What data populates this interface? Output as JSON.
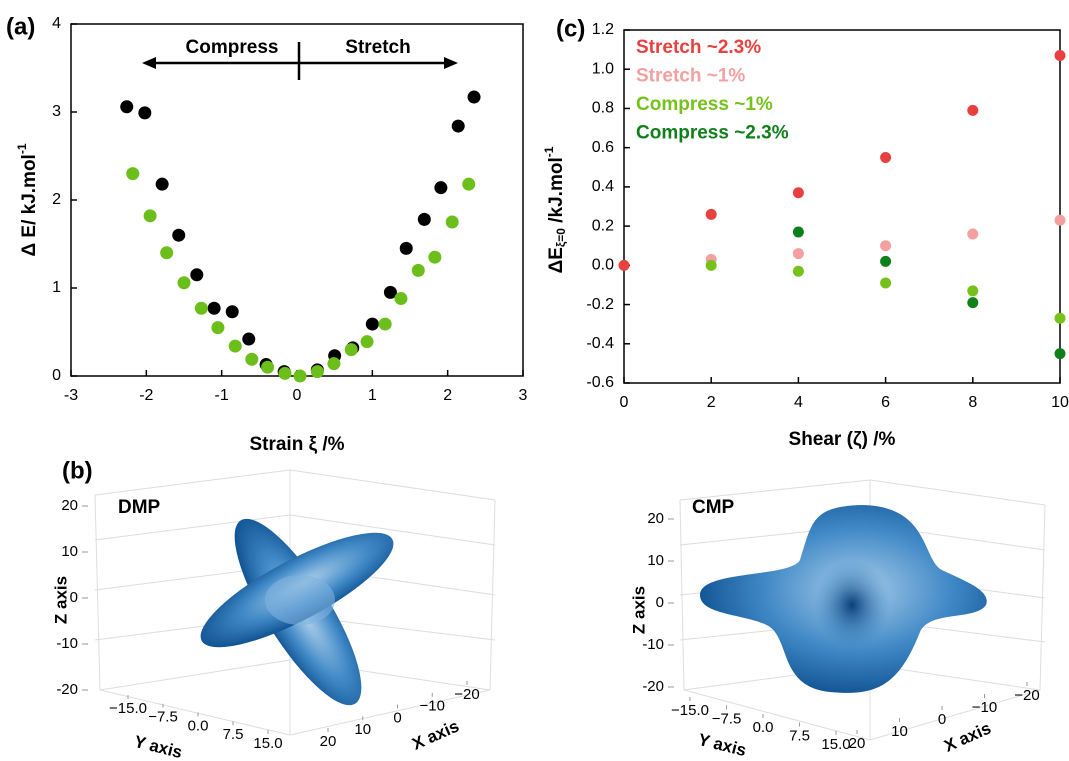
{
  "chart_data": [
    {
      "type": "scatter",
      "panel": "(a)",
      "xlabel": "Strain ξ /%",
      "ylabel": "Δ E/ kJ.mol",
      "ylabel_sup": "-1",
      "annotations": [
        "Compress",
        "Stretch"
      ],
      "xlim": [
        -3,
        3
      ],
      "ylim": [
        0,
        4
      ],
      "xticks": [
        -3,
        -2,
        -1,
        0,
        1,
        2,
        3
      ],
      "yticks": [
        0,
        1,
        2,
        3,
        4
      ],
      "series": [
        {
          "color": "#000000",
          "x": [
            -2.26,
            -2.02,
            -1.79,
            -1.57,
            -1.33,
            -1.1,
            -0.86,
            -0.64,
            -0.41,
            -0.17,
            0.27,
            0.5,
            0.74,
            1.0,
            1.24,
            1.45,
            1.69,
            1.91,
            2.14,
            2.35
          ],
          "values": [
            3.06,
            2.99,
            2.18,
            1.6,
            1.15,
            0.77,
            0.73,
            0.42,
            0.13,
            0.05,
            0.07,
            0.23,
            0.32,
            0.59,
            0.95,
            1.45,
            1.78,
            2.14,
            2.84,
            3.17
          ]
        },
        {
          "color": "#6cbf1a",
          "x": [
            -2.18,
            -1.95,
            -1.73,
            -1.5,
            -1.27,
            -1.05,
            -0.82,
            -0.6,
            -0.39,
            -0.16,
            0.04,
            0.27,
            0.49,
            0.72,
            0.93,
            1.17,
            1.38,
            1.61,
            1.83,
            2.06,
            2.28
          ],
          "values": [
            2.3,
            1.82,
            1.4,
            1.06,
            0.77,
            0.55,
            0.34,
            0.19,
            0.1,
            0.03,
            0.0,
            0.05,
            0.14,
            0.3,
            0.39,
            0.59,
            0.88,
            1.2,
            1.35,
            1.75,
            2.18
          ]
        }
      ]
    },
    {
      "type": "scatter",
      "panel": "(c)",
      "xlabel": "Shear (ζ) /%",
      "ylabel": "ΔE",
      "ylabel_sub": "ξ=0",
      "ylabel_tail": " /kJ.mol",
      "ylabel_sup": "-1",
      "xlim": [
        0,
        10
      ],
      "ylim": [
        -0.6,
        1.2
      ],
      "xticks": [
        0,
        2,
        4,
        6,
        8,
        10
      ],
      "yticks": [
        -0.6,
        -0.4,
        -0.2,
        {
          "value": 0,
          "label": "0.0"
        },
        0.2,
        0.4,
        0.6,
        0.8,
        {
          "value": 1,
          "label": "1.0"
        },
        1.2
      ],
      "series": [
        {
          "name": "Stretch ~2.3%",
          "color": "#e8403f",
          "x": [
            0,
            2,
            4,
            6,
            8,
            10
          ],
          "values": [
            0,
            0.26,
            0.37,
            0.55,
            0.79,
            1.07
          ]
        },
        {
          "name": "Stretch ~1%",
          "color": "#f4a0a0",
          "x": [
            2,
            4,
            6,
            8,
            10
          ],
          "values": [
            0.03,
            0.06,
            0.1,
            0.16,
            0.23
          ]
        },
        {
          "name": "Compress ~1%",
          "color": "#76c21b",
          "x": [
            2,
            4,
            6,
            8,
            10
          ],
          "values": [
            0.0,
            -0.03,
            -0.09,
            -0.13,
            -0.27
          ]
        },
        {
          "name": "Compress ~2.3%",
          "color": "#0f7f1a",
          "x": [
            4,
            6,
            8,
            10
          ],
          "values": [
            0.17,
            0.02,
            -0.19,
            -0.45
          ]
        }
      ]
    },
    {
      "type": "surface3d",
      "panel": "(b)",
      "title": "DMP",
      "zlabel": "Z axis",
      "ylabel": "Y axis",
      "xlabel": "X axis",
      "zticks": [
        20,
        10,
        0,
        -10,
        -20
      ],
      "yticks": [
        {
          "value": -15,
          "label": "−15.0"
        },
        {
          "value": -7.5,
          "label": "−7.5"
        },
        {
          "value": 0,
          "label": "0.0"
        },
        {
          "value": 7.5,
          "label": "7.5"
        },
        {
          "value": 15,
          "label": "15.0"
        }
      ],
      "xticks": [
        {
          "value": 20,
          "label": "20"
        },
        {
          "value": 10,
          "label": "10"
        },
        {
          "value": 0,
          "label": "0"
        },
        {
          "value": -10,
          "label": "−10"
        },
        {
          "value": -20,
          "label": "−20"
        }
      ]
    },
    {
      "type": "surface3d",
      "title": "CMP",
      "zlabel": "Z axis",
      "ylabel": "Y axis",
      "xlabel": "X axis",
      "zticks": [
        20,
        10,
        0,
        -10,
        -20
      ],
      "yticks": [
        {
          "value": -15,
          "label": "−15.0"
        },
        {
          "value": -7.5,
          "label": "−7.5"
        },
        {
          "value": 0,
          "label": "0.0"
        },
        {
          "value": 7.5,
          "label": "7.5"
        },
        {
          "value": 15,
          "label": "15.0"
        }
      ],
      "xticks": [
        {
          "value": 20,
          "label": "20"
        },
        {
          "value": 10,
          "label": "10"
        },
        {
          "value": 0,
          "label": "0"
        },
        {
          "value": -10,
          "label": "−10"
        },
        {
          "value": -20,
          "label": "−20"
        }
      ]
    }
  ]
}
